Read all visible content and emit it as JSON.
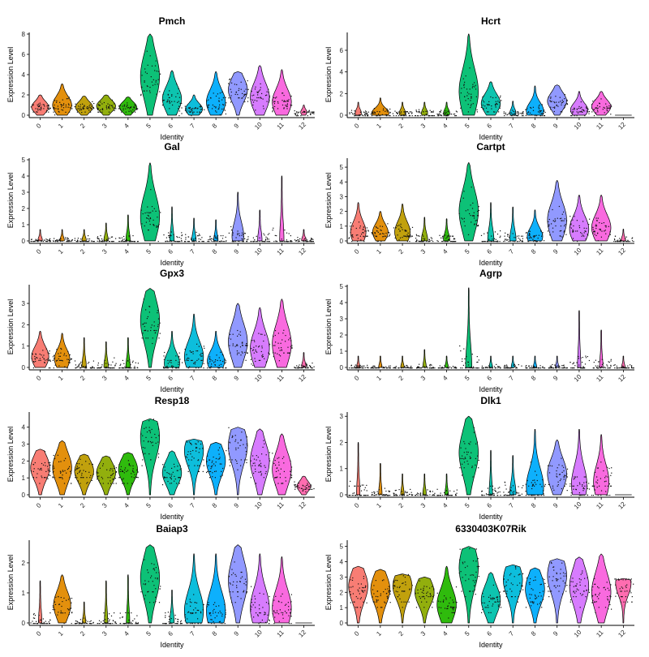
{
  "chart_data": {
    "type": "violin",
    "x_title": "Identity",
    "y_title": "Expression Level",
    "identities": [
      "0",
      "1",
      "2",
      "3",
      "4",
      "5",
      "6",
      "7",
      "8",
      "9",
      "10",
      "11",
      "12"
    ],
    "identity_colors": [
      "#F8766D",
      "#E18A00",
      "#BE9C00",
      "#8CAB00",
      "#24B700",
      "#00BE70",
      "#00C1AB",
      "#00BBDA",
      "#00ACFC",
      "#8B93FF",
      "#D575FE",
      "#F962DD",
      "#FF65AC"
    ],
    "panels": [
      {
        "gene": "Pmch",
        "ylim": [
          0,
          8
        ],
        "yticks": [
          0,
          2,
          4,
          6,
          8
        ],
        "max": [
          2,
          3.1,
          1.9,
          2,
          1.8,
          8,
          4.4,
          2,
          4.3,
          4.3,
          4.9,
          4.5,
          1
        ],
        "center": [
          0.8,
          1,
          0.8,
          0.9,
          0.8,
          3.8,
          1.6,
          0.6,
          1.3,
          2.5,
          1.8,
          1.3,
          0.3
        ],
        "body": [
          0.9,
          1,
          0.9,
          1,
          0.9,
          1,
          1,
          0.9,
          1,
          1,
          1,
          1,
          0.3
        ]
      },
      {
        "gene": "Hcrt",
        "ylim": [
          0,
          7.5
        ],
        "yticks": [
          0,
          2,
          4,
          6
        ],
        "max": [
          1.2,
          1.6,
          1.2,
          1.2,
          1.2,
          7.5,
          3.1,
          1.3,
          2.7,
          2.8,
          2.2,
          2.2,
          0
        ],
        "center": [
          0.2,
          0.2,
          0.2,
          0.2,
          0.2,
          2.2,
          1.1,
          0.2,
          0.4,
          1.3,
          0.5,
          0.8,
          0
        ],
        "body": [
          0.3,
          0.9,
          0.3,
          0.3,
          0.3,
          1,
          1,
          0.3,
          0.9,
          1,
          0.9,
          1,
          0
        ]
      },
      {
        "gene": "Gal",
        "ylim": [
          0,
          5
        ],
        "yticks": [
          0,
          1,
          2,
          3,
          4,
          5
        ],
        "max": [
          0.7,
          0.7,
          0.7,
          1.1,
          1.6,
          4.8,
          2.1,
          1.4,
          1.3,
          3,
          1.9,
          4,
          0.7
        ],
        "center": [
          0.05,
          0.05,
          0.05,
          0.05,
          0.05,
          1.5,
          0.05,
          0.05,
          0.05,
          0.3,
          0.05,
          0.05,
          0.05
        ],
        "body": [
          0.2,
          0.2,
          0.2,
          0.2,
          0.2,
          1,
          0.2,
          0.2,
          0.2,
          0.6,
          0.2,
          0.2,
          0.2
        ]
      },
      {
        "gene": "Cartpt",
        "ylim": [
          0,
          5.5
        ],
        "yticks": [
          0,
          1,
          2,
          3,
          4,
          5
        ],
        "max": [
          2.6,
          2,
          2.5,
          1.6,
          1.5,
          5.3,
          2.6,
          2.3,
          2.1,
          4.1,
          3.1,
          3.1,
          0.8
        ],
        "center": [
          0.6,
          0.6,
          0.6,
          0.1,
          0.1,
          2,
          0.1,
          0.1,
          0.3,
          1.4,
          0.8,
          0.9,
          0.05
        ],
        "body": [
          0.8,
          0.8,
          0.8,
          0.3,
          0.3,
          1,
          0.3,
          0.3,
          0.8,
          1,
          1,
          1,
          0.2
        ]
      },
      {
        "gene": "Gpx3",
        "ylim": [
          0,
          3.8
        ],
        "yticks": [
          0,
          1,
          2,
          3
        ],
        "max": [
          1.7,
          1.6,
          1.4,
          1.2,
          1.4,
          3.7,
          1.7,
          2.5,
          1.7,
          3,
          2.8,
          3.2,
          0.7
        ],
        "center": [
          0.5,
          0.4,
          0.05,
          0.05,
          0.05,
          2.2,
          0.2,
          0.5,
          0.3,
          1.2,
          0.9,
          1.1,
          0.05
        ],
        "body": [
          0.9,
          0.8,
          0.2,
          0.2,
          0.2,
          1,
          0.8,
          1,
          0.9,
          1,
          1,
          1,
          0.2
        ]
      },
      {
        "gene": "Agrp",
        "ylim": [
          0,
          5
        ],
        "yticks": [
          0,
          1,
          2,
          3,
          4,
          5
        ],
        "max": [
          0.7,
          0.7,
          0.7,
          1.1,
          0.7,
          4.9,
          0.7,
          0.7,
          0.7,
          0.7,
          3.5,
          2.3,
          0.7
        ],
        "center": [
          0.02,
          0.02,
          0.02,
          0.02,
          0.02,
          0.05,
          0.02,
          0.02,
          0.02,
          0.02,
          0.02,
          0.02,
          0.02
        ],
        "body": [
          0.15,
          0.15,
          0.15,
          0.15,
          0.15,
          0.3,
          0.15,
          0.15,
          0.15,
          0.15,
          0.15,
          0.15,
          0.15
        ]
      },
      {
        "gene": "Resp18",
        "ylim": [
          0,
          4.8
        ],
        "yticks": [
          0,
          1,
          2,
          3,
          4
        ],
        "max": [
          2.7,
          3.2,
          2.4,
          2.3,
          2.5,
          4.5,
          2.6,
          3.3,
          3.1,
          4,
          3.9,
          3.6,
          1.1
        ],
        "center": [
          1.6,
          1.6,
          1.4,
          1.3,
          1.5,
          3.4,
          1.3,
          2.6,
          2,
          2.9,
          2,
          1.5,
          0.5
        ],
        "body": [
          1,
          1,
          1,
          1,
          1,
          1,
          1,
          1,
          1,
          1,
          1,
          1,
          0.7
        ]
      },
      {
        "gene": "Dlk1",
        "ylim": [
          0,
          3.1
        ],
        "yticks": [
          0,
          1,
          2,
          3
        ],
        "max": [
          2,
          1.2,
          0.8,
          0.8,
          0.8,
          3,
          1.7,
          1.5,
          2.5,
          2.1,
          2.5,
          2.3,
          0
        ],
        "center": [
          0.02,
          0.02,
          0.02,
          0.02,
          0.02,
          1.6,
          0.02,
          0.05,
          0.3,
          0.8,
          0.4,
          0.5,
          0
        ],
        "body": [
          0.15,
          0.15,
          0.15,
          0.15,
          0.15,
          1,
          0.15,
          0.3,
          0.9,
          1,
          0.8,
          0.8,
          0
        ]
      },
      {
        "gene": "Baiap3",
        "ylim": [
          0,
          2.7
        ],
        "yticks": [
          0,
          1,
          2
        ],
        "max": [
          1.4,
          1.6,
          0.7,
          1.4,
          1.6,
          2.6,
          1.1,
          2.3,
          2.3,
          2.6,
          2.3,
          2.2,
          0
        ],
        "center": [
          0.02,
          0.6,
          0.02,
          0.02,
          0.02,
          1.5,
          0.05,
          0.4,
          0.4,
          1.4,
          0.5,
          0.5,
          0
        ],
        "body": [
          0.15,
          0.9,
          0.15,
          0.15,
          0.15,
          1,
          0.2,
          1,
          1,
          1,
          1,
          1,
          0
        ]
      },
      {
        "gene": "6330403K07Rik",
        "ylim": [
          0,
          5.3
        ],
        "yticks": [
          0,
          1,
          2,
          3,
          4,
          5
        ],
        "max": [
          3.7,
          3.5,
          3.2,
          3,
          3.7,
          5,
          3.3,
          3.8,
          3.6,
          4.2,
          4.3,
          4.5,
          2.9
        ],
        "center": [
          2.4,
          2.2,
          2.4,
          2,
          1.2,
          3.6,
          1.5,
          2.8,
          2.2,
          3.1,
          2.4,
          2,
          2.6
        ],
        "body": [
          1,
          1,
          1,
          1,
          1,
          1,
          1,
          1,
          1,
          1,
          1,
          1,
          0.8
        ]
      }
    ]
  }
}
